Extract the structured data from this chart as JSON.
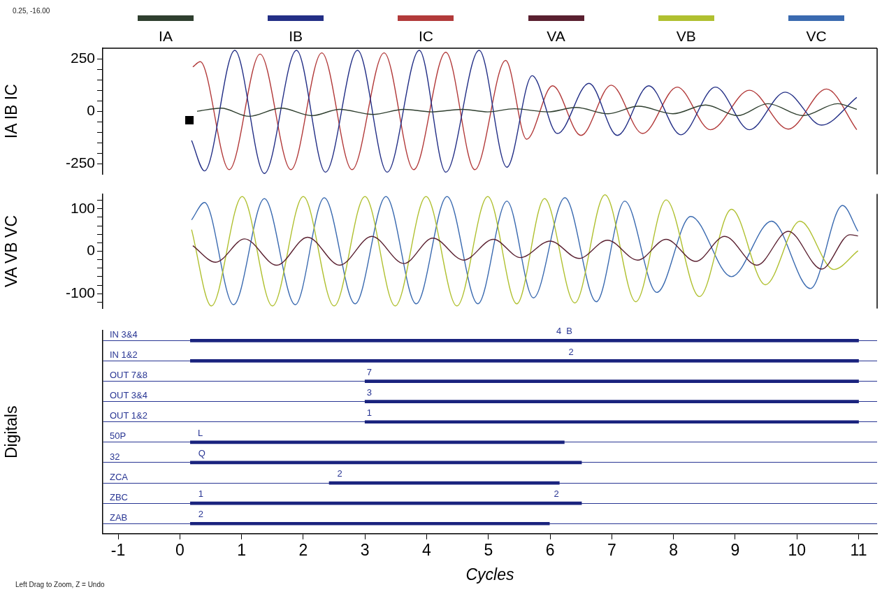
{
  "chart_data": [
    {
      "type": "line",
      "ylabel": "IA IB IC",
      "legend": "top",
      "tick_labels": "y",
      "xlim": [
        -1.25,
        11.3
      ],
      "ylim": [
        -300,
        300
      ],
      "yticks": [
        {
          "value": -250,
          "label": "-250"
        },
        {
          "value": -200,
          "label": null
        },
        {
          "value": -150,
          "label": null
        },
        {
          "value": -100,
          "label": null
        },
        {
          "value": -50,
          "label": null
        },
        0,
        {
          "value": 50,
          "label": null
        },
        {
          "value": 100,
          "label": null
        },
        {
          "value": 150,
          "label": null
        },
        {
          "value": 200,
          "label": null
        },
        250
      ],
      "annotations": [
        "0.25, -16.00"
      ],
      "series": [
        {
          "name": "IA",
          "color": "#2f3f2f",
          "x": [
            0.28,
            0.67,
            1.12,
            1.64,
            2.14,
            2.59,
            3.13,
            3.63,
            4.08,
            4.58,
            4.99,
            5.42,
            5.96,
            6.42,
            6.94,
            7.43,
            7.99,
            8.52,
            9.04,
            9.53,
            10.1,
            10.66,
            10.97
          ],
          "values": [
            0,
            15,
            -24,
            15,
            -21,
            9,
            -15,
            9,
            -3,
            9,
            -3,
            12,
            -3,
            18,
            -12,
            24,
            -12,
            30,
            -21,
            36,
            -21,
            36,
            9
          ]
        },
        {
          "name": "IB",
          "color": "#232f86",
          "x": [
            0.19,
            0.4,
            0.89,
            1.37,
            1.89,
            2.36,
            2.88,
            3.36,
            3.88,
            4.31,
            4.85,
            5.3,
            5.71,
            6.12,
            6.63,
            7.09,
            7.6,
            8.12,
            8.68,
            9.23,
            9.81,
            10.4,
            10.97
          ],
          "values": [
            -139,
            -284,
            290,
            -296,
            290,
            -290,
            290,
            -290,
            290,
            -290,
            290,
            -266,
            169,
            -106,
            133,
            -115,
            121,
            -112,
            115,
            -88,
            91,
            -66,
            66
          ]
        },
        {
          "name": "IC",
          "color": "#b23a3a",
          "x": [
            0.21,
            0.33,
            0.8,
            1.3,
            1.8,
            2.3,
            2.79,
            3.31,
            3.79,
            4.31,
            4.78,
            5.28,
            5.62,
            6.04,
            6.5,
            6.99,
            7.5,
            8.06,
            8.6,
            9.23,
            9.86,
            10.48,
            10.97
          ],
          "values": [
            211,
            236,
            -278,
            272,
            -278,
            278,
            -278,
            278,
            -278,
            281,
            -278,
            242,
            -133,
            121,
            -115,
            124,
            -106,
            115,
            -88,
            100,
            -85,
            106,
            -88
          ]
        }
      ]
    },
    {
      "type": "line",
      "ylabel": "VA VB VC",
      "legend": "top",
      "tick_labels": "y",
      "xlim": [
        -1.25,
        11.3
      ],
      "ylim": [
        -135,
        135
      ],
      "yticks": [
        {
          "value": -120,
          "label": null
        },
        -100,
        {
          "value": -80,
          "label": null
        },
        {
          "value": -60,
          "label": null
        },
        {
          "value": -40,
          "label": null
        },
        {
          "value": -20,
          "label": null
        },
        0,
        {
          "value": 20,
          "label": null
        },
        {
          "value": 40,
          "label": null
        },
        {
          "value": 60,
          "label": null
        },
        {
          "value": 80,
          "label": null
        },
        100,
        {
          "value": 120,
          "label": null
        }
      ],
      "series": [
        {
          "name": "VA",
          "color": "#5a2030",
          "x": [
            0.21,
            0.58,
            1.05,
            1.57,
            2.07,
            2.59,
            3.11,
            3.63,
            4.1,
            4.6,
            5.08,
            5.52,
            6.0,
            6.47,
            6.93,
            7.42,
            7.88,
            8.36,
            8.83,
            9.35,
            9.86,
            10.4,
            10.86,
            10.99
          ],
          "values": [
            13,
            -26,
            29,
            -33,
            33,
            -33,
            35,
            -29,
            31,
            -21,
            28,
            -15,
            24,
            -17,
            26,
            -21,
            28,
            -24,
            35,
            -33,
            47,
            -42,
            39,
            36
          ]
        },
        {
          "name": "VB",
          "color": "#b0c030",
          "x": [
            0.19,
            0.51,
            1.01,
            1.5,
            2.0,
            2.5,
            3.0,
            3.49,
            3.99,
            4.49,
            4.99,
            5.46,
            5.91,
            6.4,
            6.89,
            7.39,
            7.88,
            8.42,
            8.94,
            9.49,
            10.05,
            10.6,
            10.99
          ],
          "values": [
            51,
            -129,
            129,
            -129,
            129,
            -129,
            129,
            -129,
            129,
            -129,
            129,
            -124,
            124,
            -122,
            133,
            -119,
            121,
            -107,
            99,
            -79,
            71,
            -43,
            1
          ]
        },
        {
          "name": "VC",
          "color": "#3a6ab0",
          "x": [
            0.19,
            0.4,
            0.87,
            1.37,
            1.87,
            2.34,
            2.84,
            3.34,
            3.83,
            4.33,
            4.83,
            5.3,
            5.73,
            6.24,
            6.75,
            7.21,
            7.73,
            8.28,
            8.94,
            9.59,
            10.22,
            10.74,
            10.99
          ],
          "values": [
            74,
            115,
            -126,
            124,
            -126,
            126,
            -124,
            129,
            -124,
            129,
            -124,
            118,
            -110,
            126,
            -119,
            118,
            -97,
            82,
            -60,
            71,
            -88,
            108,
            47
          ]
        }
      ]
    },
    {
      "type": "bar",
      "orientation": "horizontal",
      "ylabel": "Digitals",
      "xlabel": "Cycles",
      "grid": "y",
      "color": "#1a237e",
      "xlim": [
        -1.25,
        11.3
      ],
      "xticks": [
        -1,
        0,
        1,
        2,
        3,
        4,
        5,
        6,
        7,
        8,
        9,
        10,
        11
      ],
      "categories": [
        "IN 3&4",
        "IN 1&2",
        "OUT 7&8",
        "OUT 3&4",
        "OUT 1&2",
        "50P",
        "32",
        "ZCA",
        "ZBC",
        "ZAB"
      ],
      "base": [
        0.17,
        0.17,
        3.0,
        3.0,
        3.0,
        0.17,
        0.17,
        2.42,
        0.17,
        0.17
      ],
      "values": [
        10.83,
        10.83,
        8.0,
        8.0,
        8.0,
        6.06,
        6.34,
        3.73,
        6.34,
        5.82
      ],
      "annotations": [
        {
          "text": "4  B",
          "x": 6.1,
          "y": "IN 3&4"
        },
        {
          "text": "2",
          "x": 6.3,
          "y": "IN 1&2"
        },
        {
          "text": "7",
          "x": 3.03,
          "y": "OUT 7&8"
        },
        {
          "text": "3",
          "x": 3.03,
          "y": "OUT 3&4"
        },
        {
          "text": "1",
          "x": 3.03,
          "y": "OUT 1&2"
        },
        {
          "text": "L",
          "x": 0.29,
          "y": "50P"
        },
        {
          "text": "Q",
          "x": 0.3,
          "y": "32"
        },
        {
          "text": "2",
          "x": 2.55,
          "y": "ZCA"
        },
        {
          "text": "1",
          "x": 0.3,
          "y": "ZBC"
        },
        {
          "text": "2",
          "x": 6.06,
          "y": "ZBC"
        },
        {
          "text": "2",
          "x": 0.3,
          "y": "ZAB"
        },
        "Left Drag to Zoom, Z = Undo"
      ]
    }
  ]
}
